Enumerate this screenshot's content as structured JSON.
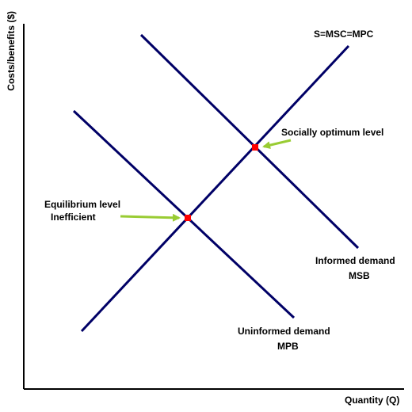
{
  "axes": {
    "y_label": "Costs/benefits ($)",
    "x_label": "Quantity (Q)"
  },
  "lines": {
    "supply": "S=MSC=MPC",
    "informed_demand_line1": "Informed demand",
    "informed_demand_line2": "MSB",
    "uninformed_demand_line1": "Uninformed demand",
    "uninformed_demand_line2": "MPB"
  },
  "annotations": {
    "optimum": "Socially optimum level",
    "equilibrium_line1": "Equilibrium level",
    "equilibrium_line2": "Inefficient"
  },
  "colors": {
    "curve": "#000066",
    "point": "#ff0000",
    "arrow": "#99cc33",
    "axis": "#000000"
  }
}
